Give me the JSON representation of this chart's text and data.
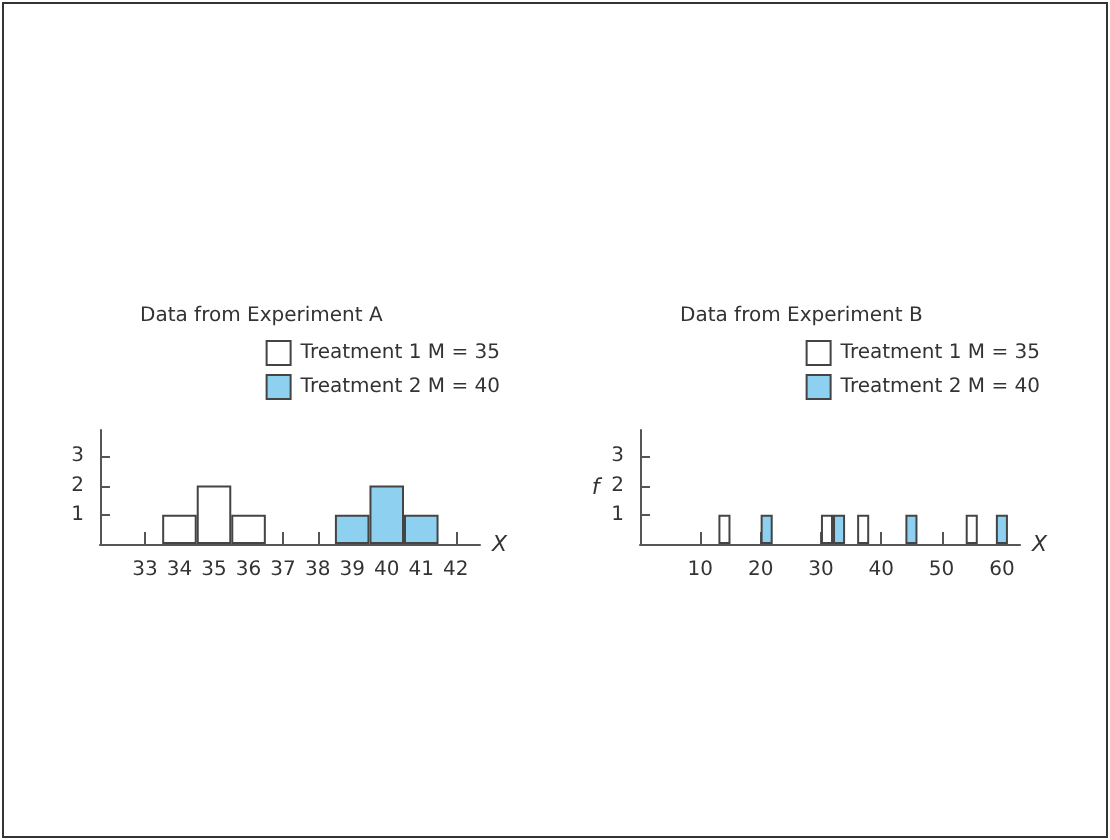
{
  "chart_data": [
    {
      "type": "bar",
      "title": "Data from Experiment A",
      "xlabel": "X",
      "legend": "top right",
      "grid": false,
      "xlim": [
        31.7,
        42.7
      ],
      "xticks": [
        33,
        34,
        35,
        36,
        37,
        38,
        39,
        40,
        41,
        42
      ],
      "ylim": [
        0,
        3.9
      ],
      "yticks": [
        1,
        2,
        3
      ],
      "series": [
        {
          "name": "Treatment 1 M = 35",
          "color": "#ffffff",
          "x": [
            34,
            35,
            36
          ],
          "values": [
            1,
            2,
            1
          ]
        },
        {
          "name": "Treatment 2 M = 40",
          "color": "#8ed0f0",
          "x": [
            39,
            40,
            41
          ],
          "values": [
            1,
            2,
            1
          ]
        }
      ]
    },
    {
      "type": "bar",
      "title": "Data from Experiment B",
      "xlabel": "X",
      "ylabel": "f",
      "legend": "top right",
      "grid": false,
      "xlim": [
        0,
        63
      ],
      "xticks": [
        10,
        20,
        30,
        40,
        50,
        60
      ],
      "ylim": [
        0,
        3.9
      ],
      "yticks": [
        1,
        2,
        3
      ],
      "series": [
        {
          "name": "Treatment 1 M = 35",
          "color": "#ffffff",
          "x": [
            14,
            31,
            37,
            55
          ],
          "values": [
            1,
            1,
            1,
            1
          ]
        },
        {
          "name": "Treatment 2 M = 40",
          "color": "#8ed0f0",
          "x": [
            21,
            33,
            45,
            60
          ],
          "values": [
            1,
            1,
            1,
            1
          ]
        }
      ]
    }
  ]
}
